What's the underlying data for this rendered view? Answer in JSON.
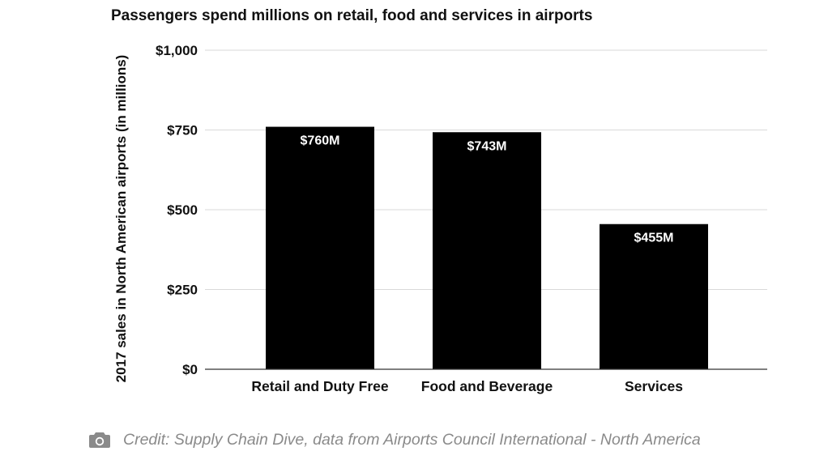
{
  "chart_data": {
    "type": "bar",
    "title": "Passengers spend millions on retail, food and services in airports",
    "xlabel": "",
    "ylabel": "2017 sales in North American airports (in millions)",
    "categories": [
      "Retail and Duty Free",
      "Food and Beverage",
      "Services"
    ],
    "values": [
      760,
      743,
      455
    ],
    "data_labels": [
      "$760M",
      "$743M",
      "$455M"
    ],
    "ylim": [
      0,
      1000
    ],
    "yticks": [
      0,
      250,
      500,
      750,
      1000
    ],
    "ytick_labels": [
      "$0",
      "$250",
      "$500",
      "$750",
      "$1,000"
    ],
    "grid": true,
    "legend": "none",
    "bar_color": "#000000",
    "gridline_color": "#d9d9d9",
    "data_label_color": "#ffffff"
  },
  "caption": {
    "icon": "camera-icon",
    "text": "Credit: Supply Chain Dive, data from Airports Council International - North America",
    "color": "#8a8a8a"
  }
}
